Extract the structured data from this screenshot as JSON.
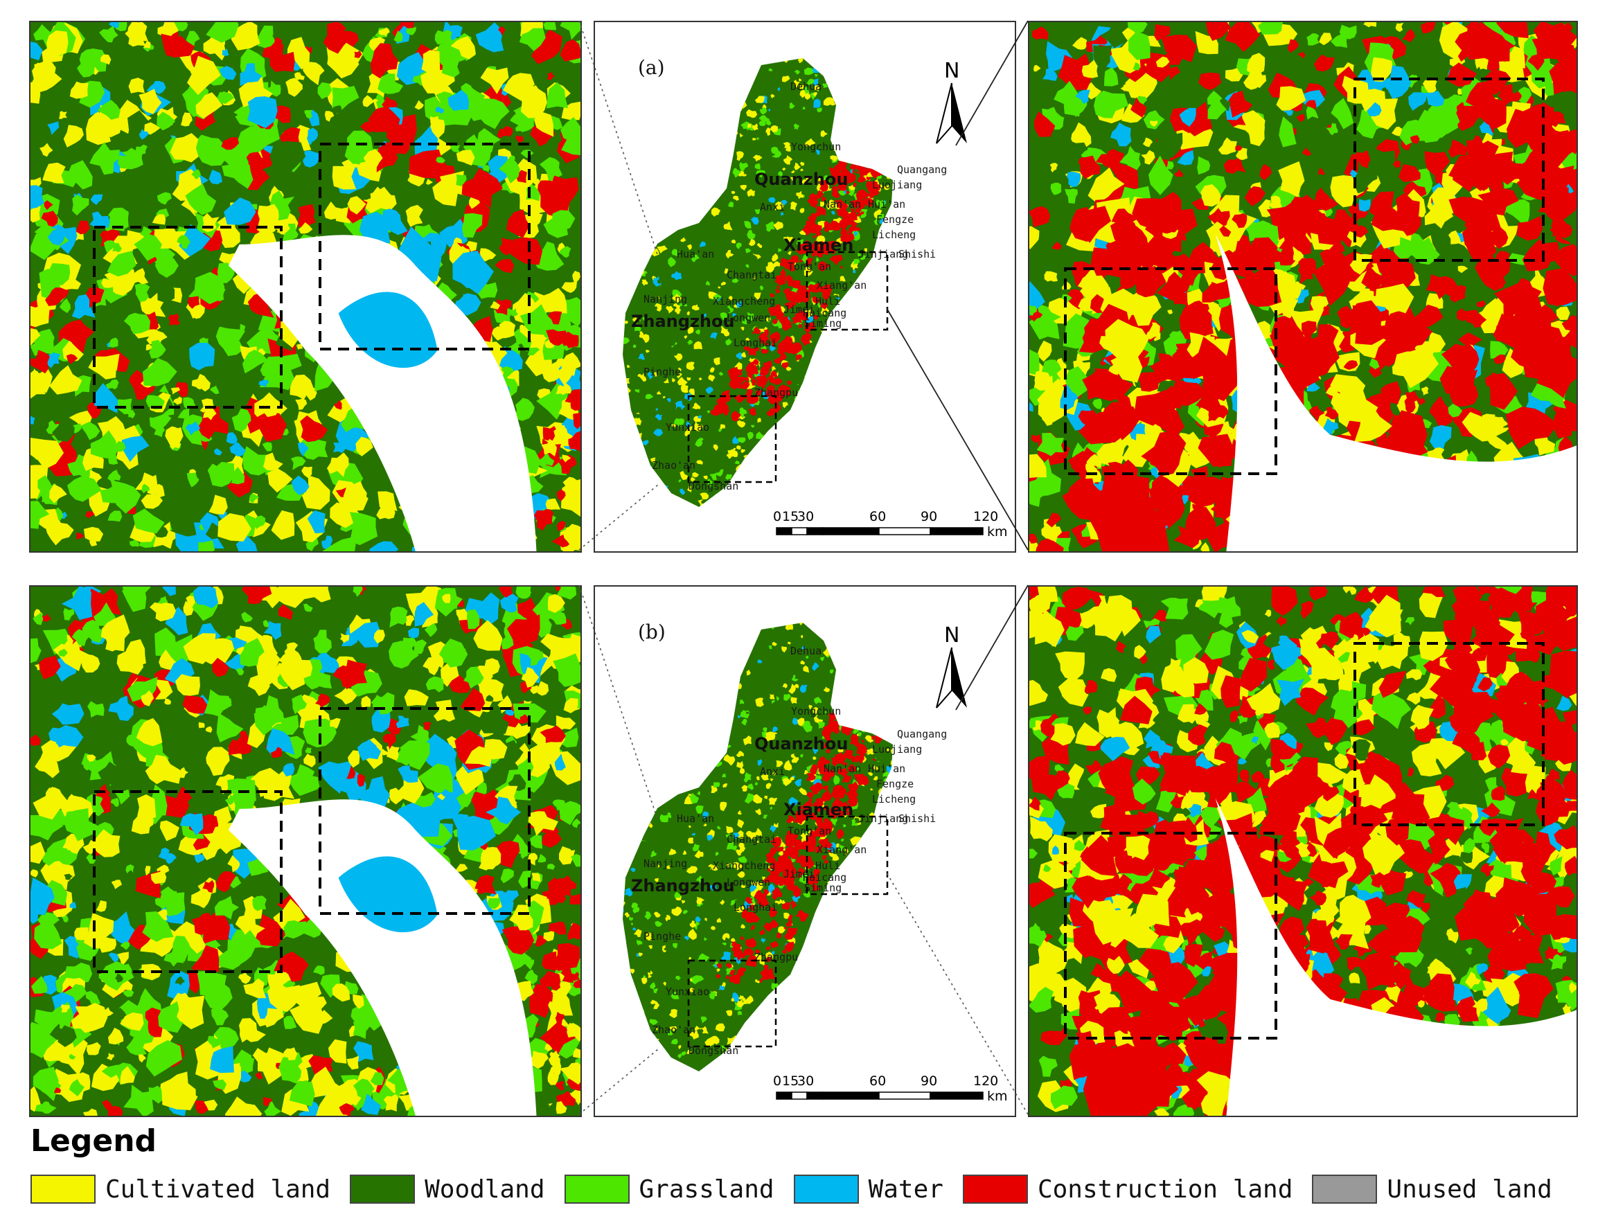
{
  "colors": {
    "cultivated": "#f5f500",
    "woodland": "#267300",
    "grassland": "#4ce600",
    "water": "#00b7f0",
    "construction": "#e60000",
    "unused": "#999999",
    "sea": "#ffffff"
  },
  "panels": [
    {
      "letter": "(a)",
      "north": "N",
      "scale_ticks": [
        "0",
        "15",
        "30",
        "60",
        "90",
        "120"
      ],
      "scale_unit": "km"
    },
    {
      "letter": "(b)",
      "north": "N",
      "scale_ticks": [
        "0",
        "15",
        "30",
        "60",
        "90",
        "120"
      ],
      "scale_unit": "km"
    }
  ],
  "place_labels": {
    "major": [
      "Quanzhou",
      "Xiamen",
      "Zhangzhou"
    ],
    "minor": [
      "Dehua",
      "Yongchun",
      "Anxi",
      "Quangang",
      "Luojiang",
      "Nan'an",
      "Hui'an",
      "Fengze",
      "Licheng",
      "Shishi",
      "Jinjiang",
      "Tong'an",
      "Xiang'an",
      "Huli",
      "Siming",
      "Haicang",
      "Jimei",
      "Hua'an",
      "Changtai",
      "Nanjing",
      "Xiangcheng",
      "Longwen",
      "Longhai",
      "Pinghe",
      "Zhangpu",
      "Yunxiao",
      "Zhao'an",
      "Dongshan"
    ]
  },
  "legend": {
    "title": "Legend",
    "items": [
      {
        "label": "Cultivated land",
        "color": "#f5f500"
      },
      {
        "label": "Woodland",
        "color": "#267300"
      },
      {
        "label": "Grassland",
        "color": "#4ce600"
      },
      {
        "label": "Water",
        "color": "#00b7f0"
      },
      {
        "label": "Construction land",
        "color": "#e60000"
      },
      {
        "label": "Unused land",
        "color": "#999999"
      }
    ]
  }
}
